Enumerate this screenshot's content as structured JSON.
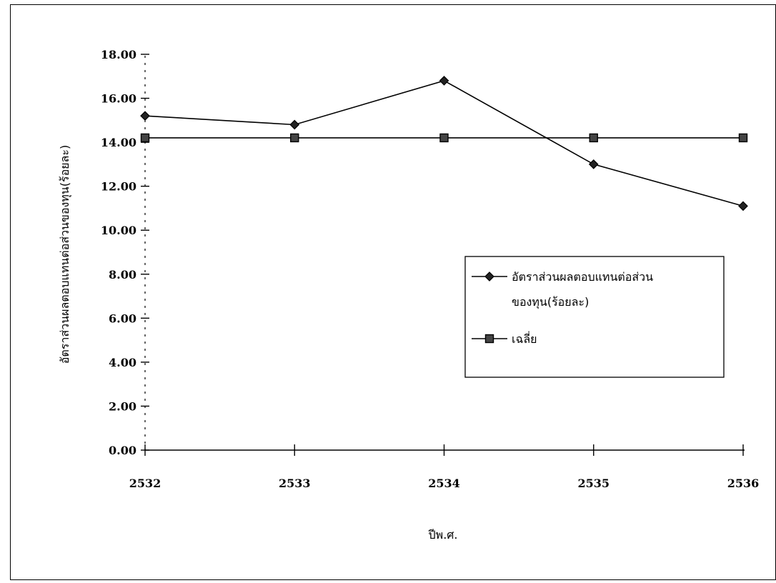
{
  "chart_data": {
    "type": "line",
    "xlabel": "ปีพ.ศ.",
    "ylabel": "อัตราส่วนผลตอบแทนต่อส่วนของทุน(ร้อยละ)",
    "categories": [
      "2532",
      "2533",
      "2534",
      "2535",
      "2536"
    ],
    "ylim": [
      0,
      18
    ],
    "yticks": [
      "0.00",
      "2.00",
      "4.00",
      "6.00",
      "8.00",
      "10.00",
      "12.00",
      "14.00",
      "16.00",
      "18.00"
    ],
    "grid": false,
    "legend_position": "right",
    "series": [
      {
        "name": "อัตราส่วนผลตอบแทนต่อส่วนของทุน(ร้อยละ)",
        "legend_lines": [
          "อัตราส่วนผลตอบแทนต่อส่วน",
          "ของทุน(ร้อยละ)"
        ],
        "marker": "diamond",
        "values": [
          15.2,
          14.8,
          16.8,
          13.0,
          11.1
        ]
      },
      {
        "name": "เฉลี่ย",
        "legend_lines": [
          "เฉลี่ย"
        ],
        "marker": "square",
        "values": [
          14.2,
          14.2,
          14.2,
          14.2,
          14.2
        ]
      }
    ]
  }
}
